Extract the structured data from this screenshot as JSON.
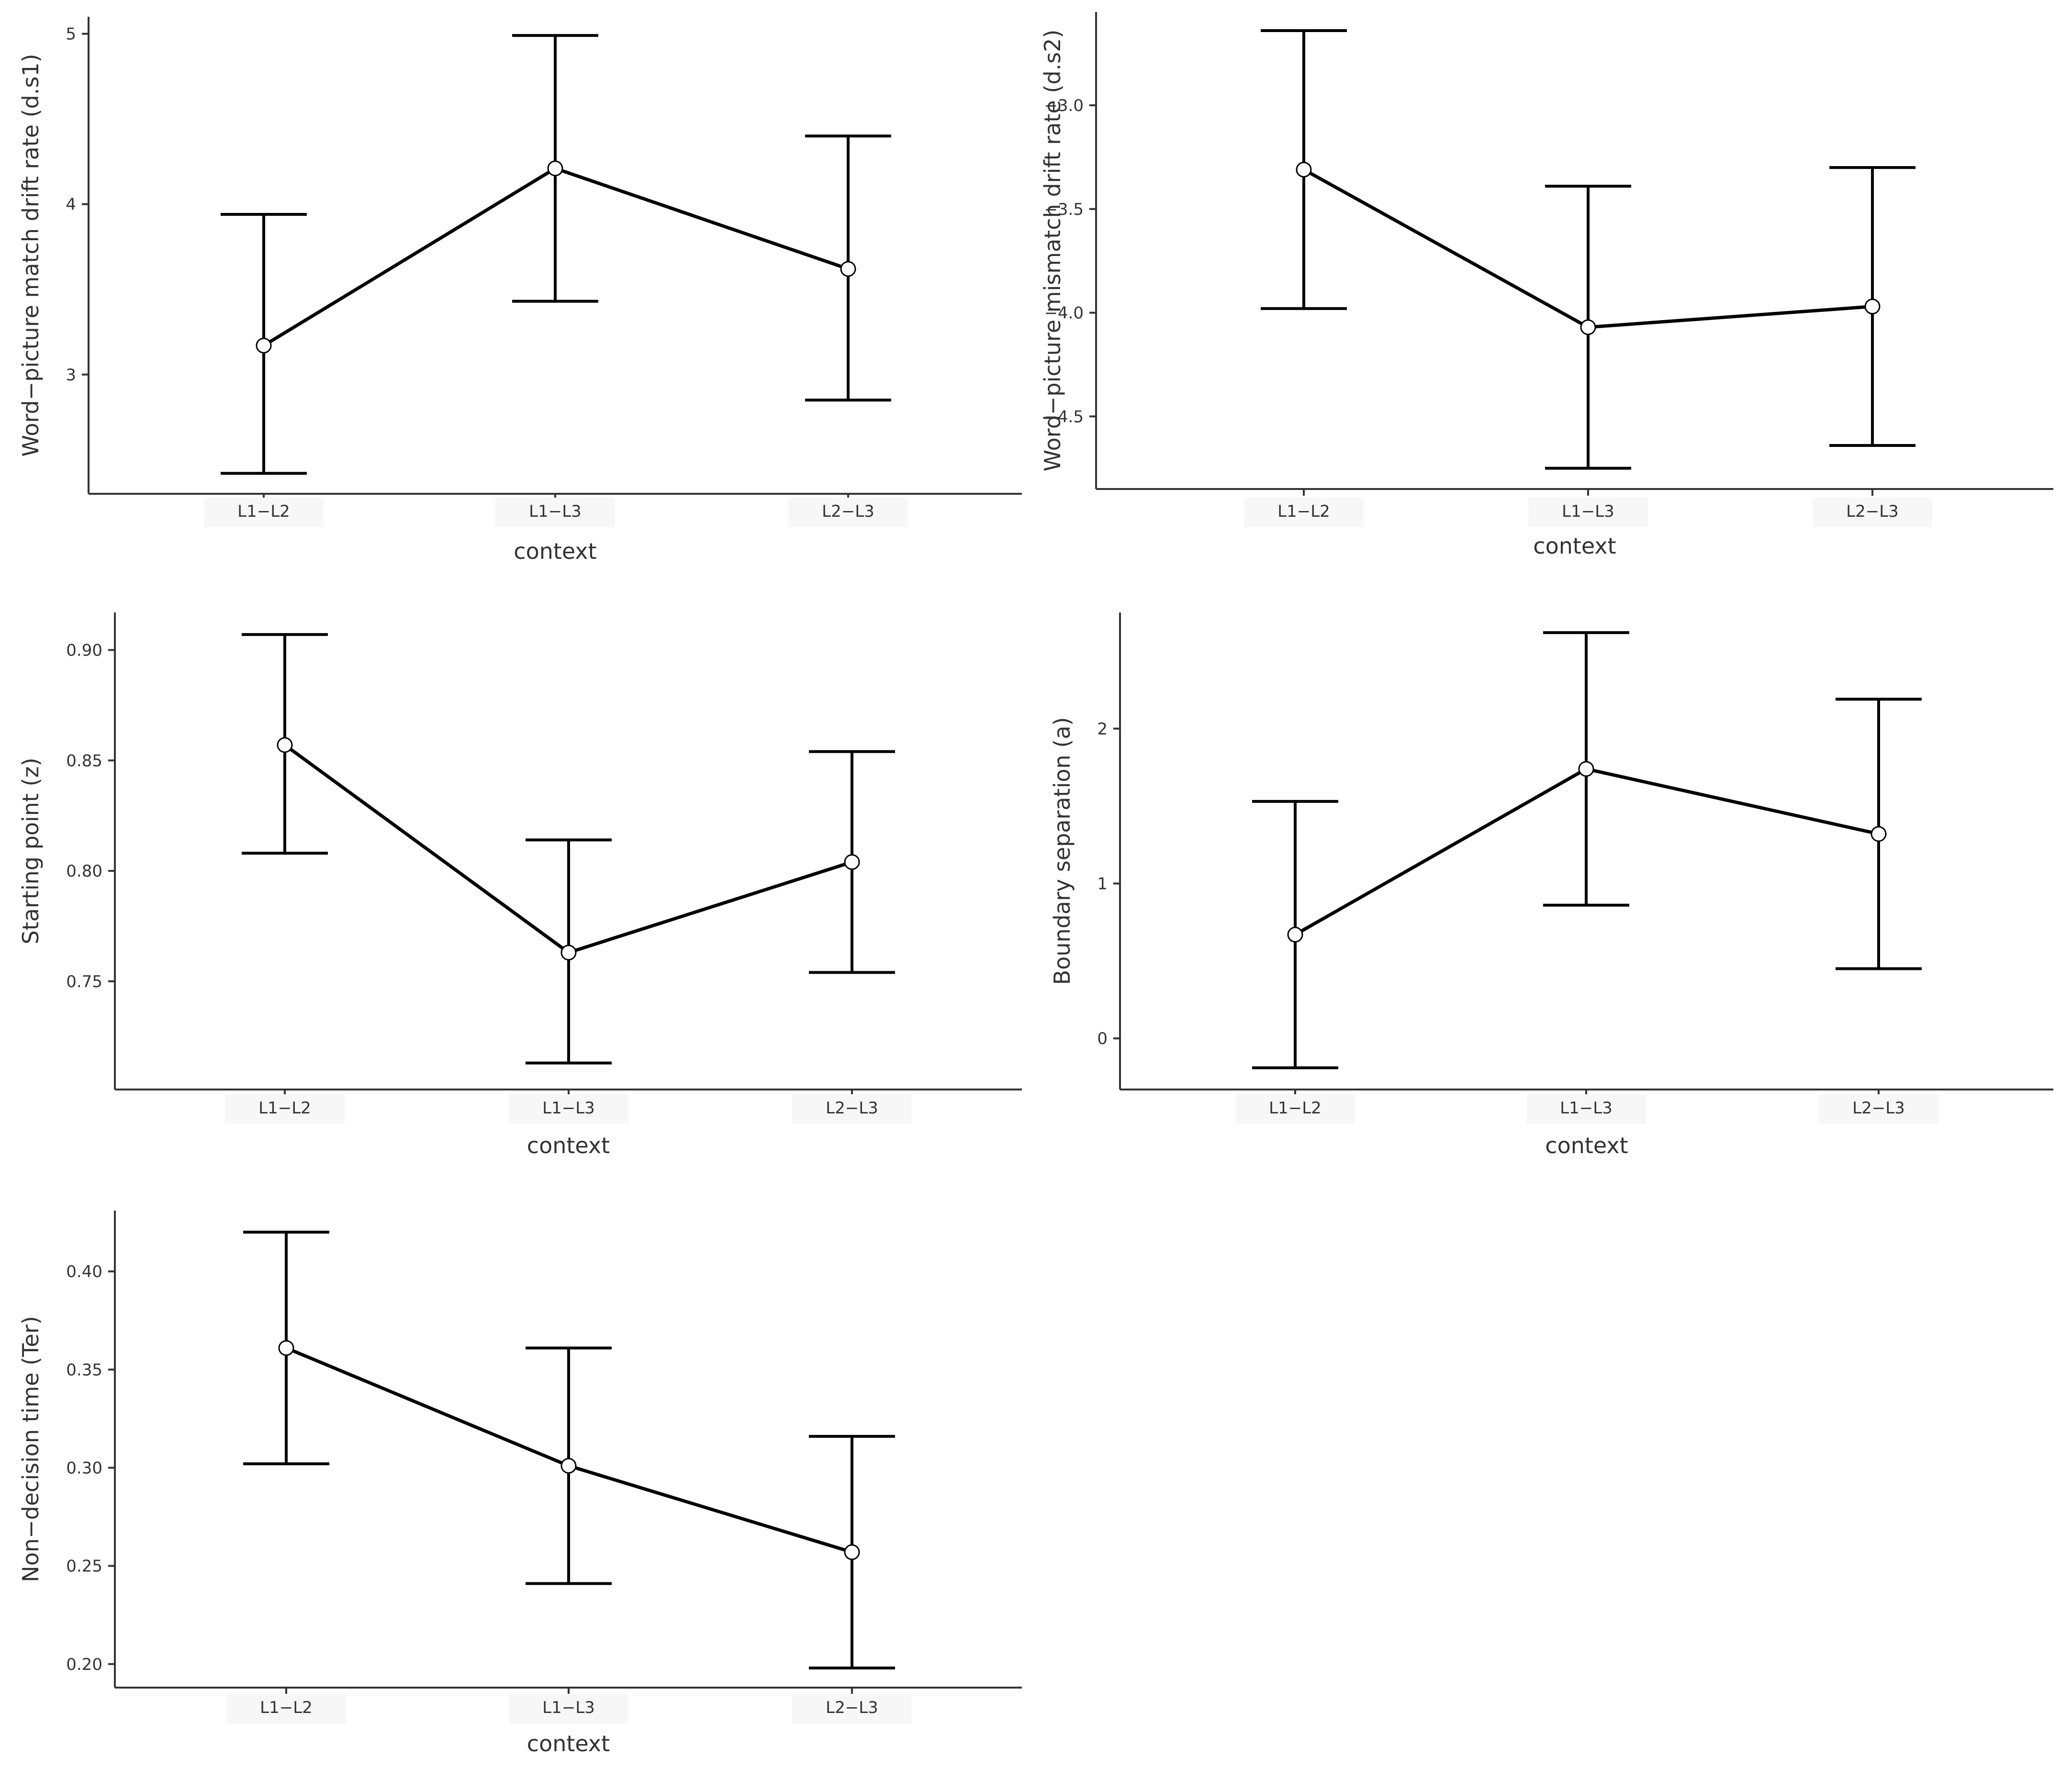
{
  "colors": {
    "background": "#ffffff",
    "line": "#000000",
    "point_fill": "#ffffff",
    "axis": "#333333"
  },
  "chart_data": [
    {
      "type": "line",
      "categories": [
        "L1−L2",
        "L1−L3",
        "L2−L3"
      ],
      "xlabel": "context",
      "ylabel": "Word−picture match drift rate (d.s1)",
      "ylim": [
        2.3,
        5.1
      ],
      "yticks": [
        3,
        4,
        5
      ],
      "ytick_labels": [
        "3",
        "4",
        "5"
      ],
      "values": [
        3.17,
        4.21,
        3.62
      ],
      "lower": [
        2.42,
        3.43,
        2.85
      ],
      "upper": [
        3.94,
        4.99,
        4.4
      ],
      "grid": false
    },
    {
      "type": "line",
      "categories": [
        "L1−L2",
        "L1−L3",
        "L2−L3"
      ],
      "xlabel": "context",
      "ylabel": "Word−picture mismatch drift rate (d.s2)",
      "ylim": [
        -4.85,
        -2.55
      ],
      "yticks": [
        -4.5,
        -4.0,
        -3.5,
        -3.0
      ],
      "ytick_labels": [
        "−4.5",
        "−4.0",
        "−3.5",
        "−3.0"
      ],
      "values": [
        -3.31,
        -4.07,
        -3.97
      ],
      "lower": [
        -3.98,
        -4.75,
        -4.64
      ],
      "upper": [
        -2.64,
        -3.39,
        -3.3
      ],
      "grid": false
    },
    {
      "type": "line",
      "categories": [
        "L1−L2",
        "L1−L3",
        "L2−L3"
      ],
      "xlabel": "context",
      "ylabel": "Starting point (z)",
      "ylim": [
        0.701,
        0.917
      ],
      "yticks": [
        0.75,
        0.8,
        0.85,
        0.9
      ],
      "ytick_labels": [
        "0.75",
        "0.80",
        "0.85",
        "0.90"
      ],
      "values": [
        0.857,
        0.763,
        0.804
      ],
      "lower": [
        0.808,
        0.713,
        0.754
      ],
      "upper": [
        0.907,
        0.814,
        0.854
      ],
      "grid": false
    },
    {
      "type": "line",
      "categories": [
        "L1−L2",
        "L1−L3",
        "L2−L3"
      ],
      "xlabel": "context",
      "ylabel": "Boundary separation (a)",
      "ylim": [
        -0.33,
        2.75
      ],
      "yticks": [
        0,
        1,
        2
      ],
      "ytick_labels": [
        "0",
        "1",
        "2"
      ],
      "values": [
        0.67,
        1.74,
        1.32
      ],
      "lower": [
        -0.19,
        0.86,
        0.45
      ],
      "upper": [
        1.53,
        2.62,
        2.19
      ],
      "grid": false
    },
    {
      "type": "line",
      "categories": [
        "L1−L2",
        "L1−L3",
        "L2−L3"
      ],
      "xlabel": "context",
      "ylabel": "Non−decision time (Ter)",
      "ylim": [
        0.188,
        0.431
      ],
      "yticks": [
        0.2,
        0.25,
        0.3,
        0.35,
        0.4
      ],
      "ytick_labels": [
        "0.20",
        "0.25",
        "0.30",
        "0.35",
        "0.40"
      ],
      "values": [
        0.361,
        0.301,
        0.257
      ],
      "lower": [
        0.302,
        0.241,
        0.198
      ],
      "upper": [
        0.42,
        0.361,
        0.316
      ],
      "grid": false
    }
  ]
}
